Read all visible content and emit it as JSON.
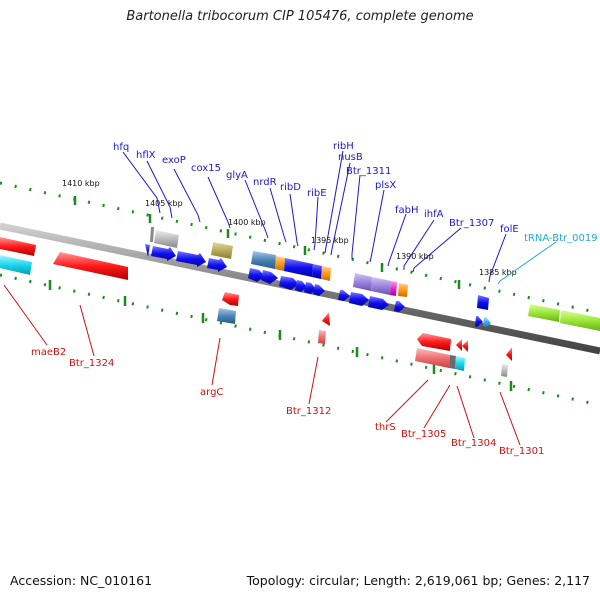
{
  "title": "Bartonella tribocorum CIP 105476, complete genome",
  "footer": {
    "accession": "Accession: NC_010161",
    "summary": "Topology: circular; Length: 2,619,061 bp; Genes: 2,117"
  },
  "colors": {
    "upper_gene_label": "#1a1acc",
    "lower_gene_label": "#cc1111",
    "trna_label": "#22aacc",
    "backbone": "#777777",
    "tick": "#338833",
    "cds_forward": "#1111ee",
    "cds_reverse": "#ee1111"
  },
  "scale_labels": [
    "1410 kbp",
    "1405 kbp",
    "1400 kbp",
    "1395 kbp",
    "1390 kbp",
    "1385 kbp"
  ],
  "upper_labels": [
    "hfq",
    "hflX",
    "exoP",
    "cox15",
    "glyA",
    "nrdR",
    "ribD",
    "ribE",
    "ribH",
    "nusB",
    "Btr_1311",
    "plsX",
    "fabH",
    "ihfA",
    "Btr_1307",
    "folE",
    "tRNA-Btr_0019"
  ],
  "lower_labels": [
    "maeB2",
    "Btr_1324",
    "argC",
    "Btr_1312",
    "thrS",
    "Btr_1305",
    "Btr_1304",
    "Btr_1301"
  ]
}
